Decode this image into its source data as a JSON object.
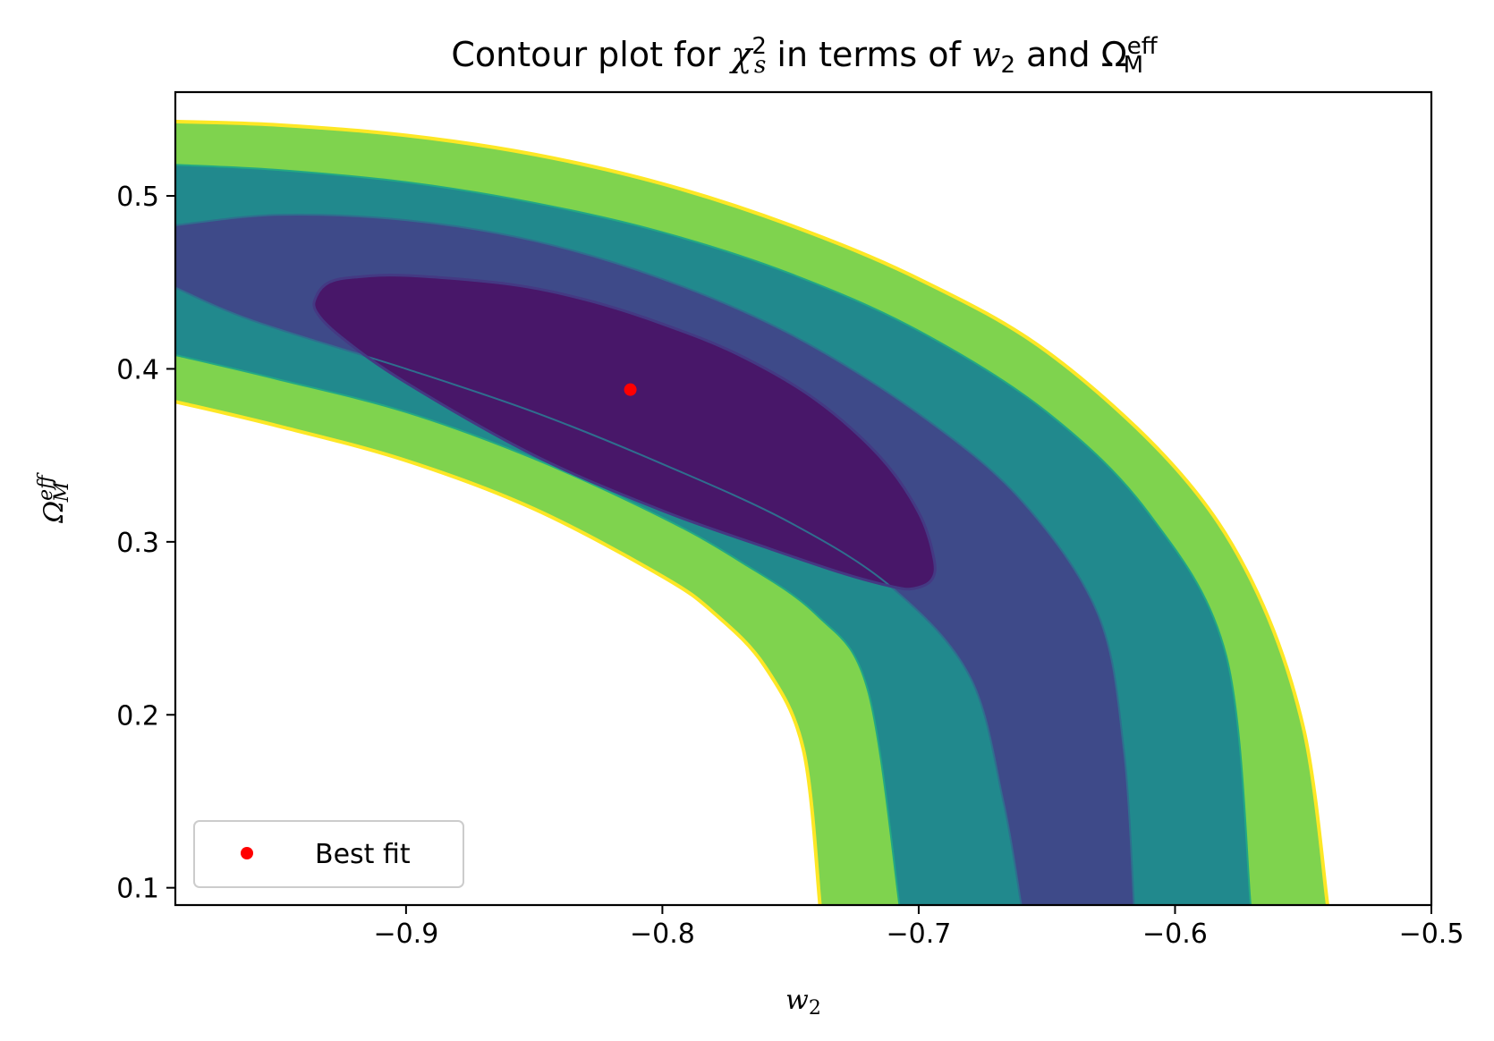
{
  "chart_data": {
    "type": "contour",
    "title": "Contour plot for χ²ₛ in terms of w₂ and Ωᴹᵉᶠᶠ",
    "title_parts": {
      "prefix": "Contour plot for ",
      "chi": "χ",
      "chi_sup": "2",
      "chi_sub": "s",
      "middle": " in terms of ",
      "w": "w",
      "w_sub": "2",
      "and": " and ",
      "omega": "Ω",
      "omega_sup": "eff",
      "omega_sub": "M"
    },
    "xlabel": {
      "base": "w",
      "sub": "2"
    },
    "ylabel": {
      "base": "Ω",
      "sup": "eff",
      "sub": "M"
    },
    "xlim": [
      -0.99,
      -0.5
    ],
    "ylim": [
      0.09,
      0.56
    ],
    "xticks": [
      -0.9,
      -0.8,
      -0.7,
      -0.6,
      -0.5
    ],
    "xtick_labels": [
      "−0.9",
      "−0.8",
      "−0.7",
      "−0.6",
      "−0.5"
    ],
    "yticks": [
      0.1,
      0.2,
      0.3,
      0.4,
      0.5
    ],
    "ytick_labels": [
      "0.1",
      "0.2",
      "0.3",
      "0.4",
      "0.5"
    ],
    "best_fit": {
      "w2": -0.8125,
      "omega_m": 0.388,
      "color": "#ff0000"
    },
    "legend": {
      "label": "Best fit",
      "placement": "lower left"
    },
    "colors": {
      "level1": "#481769",
      "level2": "#3e4a89",
      "level3": "#21898d",
      "level4": "#7fd34e",
      "edge_outer": "#fde725",
      "edge_inner": "#22a884"
    },
    "regions": [
      {
        "level": 4,
        "outer": [
          [
            -0.99,
            0.543
          ],
          [
            -0.95,
            0.541
          ],
          [
            -0.9,
            0.535
          ],
          [
            -0.85,
            0.524
          ],
          [
            -0.8,
            0.507
          ],
          [
            -0.75,
            0.483
          ],
          [
            -0.7,
            0.452
          ],
          [
            -0.65,
            0.41
          ],
          [
            -0.6,
            0.343
          ],
          [
            -0.57,
            0.277
          ],
          [
            -0.55,
            0.193
          ],
          [
            -0.5405,
            0.09
          ]
        ],
        "inner": [
          [
            -0.99,
            0.381
          ],
          [
            -0.95,
            0.367
          ],
          [
            -0.9,
            0.347
          ],
          [
            -0.85,
            0.319
          ],
          [
            -0.8,
            0.28
          ],
          [
            -0.78,
            0.259
          ],
          [
            -0.76,
            0.228
          ],
          [
            -0.745,
            0.18
          ],
          [
            -0.7385,
            0.09
          ]
        ]
      },
      {
        "level": 3,
        "outer": [
          [
            -0.99,
            0.518
          ],
          [
            -0.95,
            0.515
          ],
          [
            -0.9,
            0.508
          ],
          [
            -0.85,
            0.496
          ],
          [
            -0.8,
            0.479
          ],
          [
            -0.75,
            0.455
          ],
          [
            -0.7,
            0.422
          ],
          [
            -0.65,
            0.375
          ],
          [
            -0.61,
            0.316
          ],
          [
            -0.58,
            0.234
          ],
          [
            -0.5705,
            0.09
          ]
        ],
        "inner": [
          [
            -0.99,
            0.408
          ],
          [
            -0.95,
            0.394
          ],
          [
            -0.9,
            0.375
          ],
          [
            -0.85,
            0.348
          ],
          [
            -0.8,
            0.314
          ],
          [
            -0.77,
            0.289
          ],
          [
            -0.74,
            0.258
          ],
          [
            -0.72,
            0.215
          ],
          [
            -0.7075,
            0.09
          ]
        ]
      },
      {
        "level": 2,
        "outer": [
          [
            -0.99,
            0.483
          ],
          [
            -0.95,
            0.489
          ],
          [
            -0.9,
            0.486
          ],
          [
            -0.85,
            0.474
          ],
          [
            -0.8,
            0.452
          ],
          [
            -0.75,
            0.42
          ],
          [
            -0.7,
            0.374
          ],
          [
            -0.66,
            0.324
          ],
          [
            -0.63,
            0.258
          ],
          [
            -0.62,
            0.18
          ],
          [
            -0.616,
            0.09
          ]
        ],
        "inner": [
          [
            -0.99,
            0.447
          ],
          [
            -0.96,
            0.428
          ],
          [
            -0.9,
            0.4
          ],
          [
            -0.85,
            0.375
          ],
          [
            -0.8,
            0.345
          ],
          [
            -0.75,
            0.311
          ],
          [
            -0.71,
            0.273
          ],
          [
            -0.68,
            0.222
          ],
          [
            -0.667,
            0.15
          ],
          [
            -0.66,
            0.09
          ]
        ]
      },
      {
        "level": 1,
        "closed": [
          [
            -0.935,
            0.442
          ],
          [
            -0.93,
            0.45
          ],
          [
            -0.92,
            0.453
          ],
          [
            -0.9,
            0.454
          ],
          [
            -0.86,
            0.449
          ],
          [
            -0.83,
            0.44
          ],
          [
            -0.8,
            0.426
          ],
          [
            -0.77,
            0.408
          ],
          [
            -0.74,
            0.382
          ],
          [
            -0.715,
            0.349
          ],
          [
            -0.7,
            0.317
          ],
          [
            -0.694,
            0.29
          ],
          [
            -0.695,
            0.278
          ],
          [
            -0.702,
            0.273
          ],
          [
            -0.71,
            0.274
          ],
          [
            -0.73,
            0.282
          ],
          [
            -0.76,
            0.297
          ],
          [
            -0.8,
            0.318
          ],
          [
            -0.85,
            0.35
          ],
          [
            -0.9,
            0.392
          ],
          [
            -0.925,
            0.418
          ],
          [
            -0.935,
            0.433
          ]
        ]
      }
    ]
  }
}
